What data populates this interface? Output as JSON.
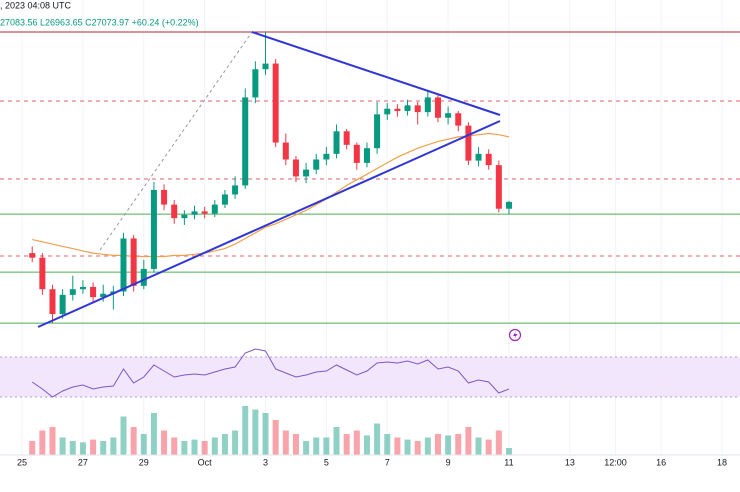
{
  "chart_data": {
    "type": "candlestick",
    "header_time": ", 2023 04:08 UTC",
    "header_ohlc": "27083.56 L26963.65 C27073.97 +60.24 (+0.22%)",
    "x": [
      8,
      16,
      24,
      32,
      40,
      48,
      56,
      64,
      72,
      80,
      88,
      96,
      104,
      112,
      120,
      128,
      136,
      144,
      152,
      160,
      168,
      176,
      184,
      192,
      200,
      208,
      216,
      224,
      232,
      240,
      248,
      256,
      264,
      272,
      280,
      288,
      296,
      304,
      312,
      320,
      328,
      336,
      344,
      352,
      360,
      368,
      376,
      384
    ],
    "xlim": [
      -17.4,
      566.2
    ],
    "xticks": [
      {
        "value": 0,
        "label": "25"
      },
      {
        "value": 48,
        "label": "27"
      },
      {
        "value": 96,
        "label": "29"
      },
      {
        "value": 144,
        "label": "Oct"
      },
      {
        "value": 192,
        "label": "3"
      },
      {
        "value": 240,
        "label": "5"
      },
      {
        "value": 288,
        "label": "7"
      },
      {
        "value": 336,
        "label": "9"
      },
      {
        "value": 384,
        "label": "11"
      },
      {
        "value": 432,
        "label": "13"
      },
      {
        "value": 468,
        "label": "12:00"
      },
      {
        "value": 504,
        "label": "16"
      },
      {
        "value": 552,
        "label": "18"
      }
    ],
    "open": [
      26620,
      26580,
      26300,
      26080,
      26250,
      26300,
      26320,
      26230,
      26260,
      26280,
      26750,
      26330,
      26480,
      27180,
      27050,
      26930,
      26960,
      26990,
      26970,
      27050,
      27140,
      27220,
      28000,
      28250,
      28300,
      27600,
      27450,
      27300,
      27360,
      27450,
      27500,
      27700,
      27580,
      27420,
      27550,
      27850,
      27900,
      27880,
      27930,
      27870,
      28000,
      27820,
      27860,
      27750,
      27440,
      27500,
      27400,
      27013.73
    ],
    "high": [
      26680,
      26620,
      26340,
      26300,
      26420,
      26380,
      26360,
      26340,
      26330,
      26800,
      26780,
      26560,
      27250,
      27230,
      27090,
      27000,
      27040,
      27030,
      27090,
      27180,
      27300,
      28080,
      28320,
      28580,
      28340,
      27680,
      27480,
      27420,
      27500,
      27560,
      27760,
      27720,
      27600,
      27600,
      27960,
      27950,
      27940,
      27980,
      27960,
      28060,
      28020,
      27920,
      27880,
      27780,
      27560,
      27540,
      27440,
      27083.56
    ],
    "low": [
      26540,
      26250,
      26000,
      26040,
      26200,
      26260,
      26180,
      26190,
      26120,
      26240,
      26280,
      26300,
      26450,
      27000,
      26880,
      26870,
      26920,
      26930,
      26940,
      27020,
      27100,
      27190,
      27950,
      28200,
      27560,
      27400,
      27250,
      27240,
      27320,
      27400,
      27460,
      27540,
      27360,
      27380,
      27500,
      27800,
      27830,
      27840,
      27760,
      27830,
      27780,
      27760,
      27700,
      27400,
      27390,
      27360,
      26980,
      26963.65
    ],
    "close": [
      26580,
      26300,
      26080,
      26250,
      26300,
      26320,
      26230,
      26260,
      26280,
      26750,
      26330,
      26480,
      27180,
      27050,
      26930,
      26960,
      26990,
      26970,
      27050,
      27140,
      27220,
      28000,
      28250,
      28300,
      27600,
      27450,
      27300,
      27360,
      27450,
      27500,
      27700,
      27580,
      27420,
      27550,
      27850,
      27900,
      27880,
      27930,
      27870,
      28000,
      27820,
      27860,
      27750,
      27440,
      27500,
      27400,
      27013.73,
      27073.97
    ],
    "up_color": "#089981",
    "down_color": "#f23645",
    "ylim": [
      25850,
      28775
    ],
    "levels": [
      {
        "value": 28580,
        "color": "#b22833",
        "style": "solid"
      },
      {
        "value": 27968,
        "color": "#e0626b",
        "style": "dashed"
      },
      {
        "value": 27277,
        "color": "#e0626b",
        "style": "dashed"
      },
      {
        "value": 26966,
        "color": "#4caf50",
        "style": "solid"
      },
      {
        "value": 26594,
        "color": "#e0626b",
        "style": "dashed"
      },
      {
        "value": 26452,
        "color": "#4caf50",
        "style": "solid"
      },
      {
        "value": 26000,
        "color": "#4caf50",
        "style": "solid"
      }
    ],
    "ma": {
      "color": "#f0a04b",
      "values": [
        26740,
        26720,
        26700,
        26680,
        26660,
        26640,
        26620,
        26610,
        26600,
        26600,
        26590,
        26590,
        26590,
        26590,
        26600,
        26600,
        26610,
        26620,
        26640,
        26660,
        26700,
        26750,
        26800,
        26850,
        26880,
        26920,
        26960,
        27000,
        27050,
        27100,
        27160,
        27220,
        27270,
        27320,
        27370,
        27420,
        27470,
        27510,
        27550,
        27580,
        27610,
        27630,
        27650,
        27660,
        27670,
        27680,
        27670,
        27650
      ]
    },
    "rsi": {
      "color": "#7e57c2",
      "band": [
        30,
        70
      ],
      "band_color": "#f1e6fb",
      "ylim": [
        22,
        82
      ],
      "values": [
        45,
        38,
        30,
        36,
        40,
        42,
        38,
        40,
        41,
        58,
        44,
        50,
        62,
        56,
        50,
        52,
        53,
        52,
        55,
        58,
        60,
        74,
        78,
        76,
        58,
        54,
        50,
        52,
        55,
        56,
        62,
        57,
        52,
        56,
        64,
        65,
        64,
        66,
        63,
        67,
        58,
        60,
        56,
        44,
        47,
        45,
        34,
        38
      ]
    },
    "volume": {
      "ylim": [
        0,
        100
      ],
      "values": [
        20,
        35,
        40,
        25,
        20,
        18,
        22,
        20,
        25,
        55,
        40,
        30,
        60,
        35,
        25,
        20,
        22,
        20,
        25,
        30,
        35,
        70,
        65,
        60,
        50,
        35,
        30,
        20,
        25,
        25,
        40,
        30,
        35,
        28,
        45,
        30,
        25,
        22,
        20,
        25,
        30,
        28,
        30,
        40,
        25,
        22,
        35,
        10
      ]
    }
  }
}
